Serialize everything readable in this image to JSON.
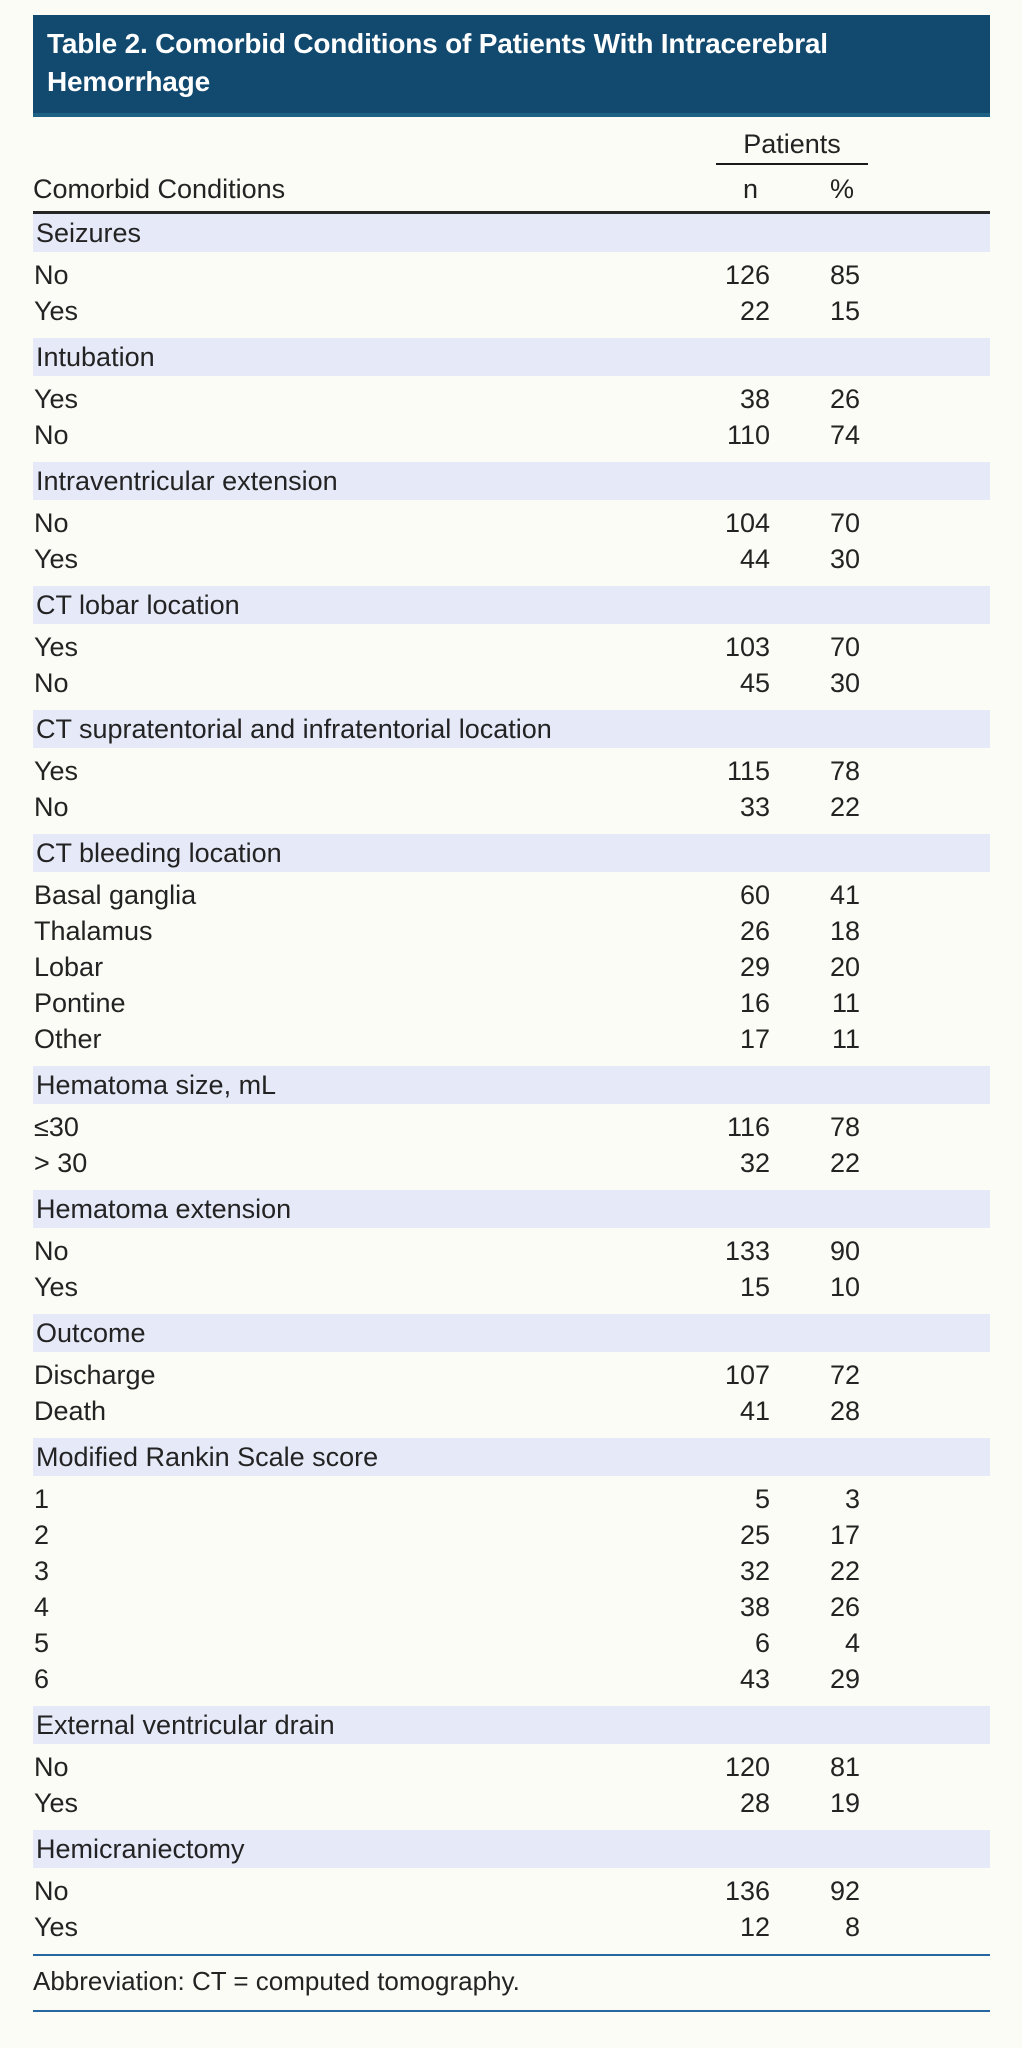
{
  "header": {
    "title": "Table 2. Comorbid Conditions of Patients With Intracerebral Hemorrhage"
  },
  "columns": {
    "condition": "Comorbid Conditions",
    "group": "Patients",
    "n": "n",
    "pct": "%"
  },
  "table": {
    "sections": [
      {
        "header": "Seizures",
        "rows": [
          {
            "label": "No",
            "n": "126",
            "pct": "85"
          },
          {
            "label": "Yes",
            "n": "22",
            "pct": "15"
          }
        ]
      },
      {
        "header": "Intubation",
        "rows": [
          {
            "label": "Yes",
            "n": "38",
            "pct": "26"
          },
          {
            "label": "No",
            "n": "110",
            "pct": "74"
          }
        ]
      },
      {
        "header": "Intraventricular extension",
        "rows": [
          {
            "label": "No",
            "n": "104",
            "pct": "70"
          },
          {
            "label": "Yes",
            "n": "44",
            "pct": "30"
          }
        ]
      },
      {
        "header": "CT lobar location",
        "rows": [
          {
            "label": "Yes",
            "n": "103",
            "pct": "70"
          },
          {
            "label": "No",
            "n": "45",
            "pct": "30"
          }
        ]
      },
      {
        "header": "CT supratentorial and infratentorial location",
        "rows": [
          {
            "label": "Yes",
            "n": "115",
            "pct": "78"
          },
          {
            "label": "No",
            "n": "33",
            "pct": "22"
          }
        ]
      },
      {
        "header": "CT bleeding location",
        "rows": [
          {
            "label": "Basal ganglia",
            "n": "60",
            "pct": "41"
          },
          {
            "label": "Thalamus",
            "n": "26",
            "pct": "18"
          },
          {
            "label": "Lobar",
            "n": "29",
            "pct": "20"
          },
          {
            "label": "Pontine",
            "n": "16",
            "pct": "11"
          },
          {
            "label": "Other",
            "n": "17",
            "pct": "11"
          }
        ]
      },
      {
        "header": "Hematoma size, mL",
        "rows": [
          {
            "label": "≤30",
            "n": "116",
            "pct": "78"
          },
          {
            "label": "> 30",
            "n": "32",
            "pct": "22"
          }
        ]
      },
      {
        "header": "Hematoma extension",
        "rows": [
          {
            "label": "No",
            "n": "133",
            "pct": "90"
          },
          {
            "label": "Yes",
            "n": "15",
            "pct": "10"
          }
        ]
      },
      {
        "header": "Outcome",
        "rows": [
          {
            "label": "Discharge",
            "n": "107",
            "pct": "72"
          },
          {
            "label": "Death",
            "n": "41",
            "pct": "28"
          }
        ]
      },
      {
        "header": "Modified Rankin Scale score",
        "rows": [
          {
            "label": "1",
            "n": "5",
            "pct": "3"
          },
          {
            "label": "2",
            "n": "25",
            "pct": "17"
          },
          {
            "label": "3",
            "n": "32",
            "pct": "22"
          },
          {
            "label": "4",
            "n": "38",
            "pct": "26"
          },
          {
            "label": "5",
            "n": "6",
            "pct": "4"
          },
          {
            "label": "6",
            "n": "43",
            "pct": "29"
          }
        ]
      },
      {
        "header": "External ventricular drain",
        "rows": [
          {
            "label": "No",
            "n": "120",
            "pct": "81"
          },
          {
            "label": "Yes",
            "n": "28",
            "pct": "19"
          }
        ]
      },
      {
        "header": "Hemicraniectomy",
        "rows": [
          {
            "label": "No",
            "n": "136",
            "pct": "92"
          },
          {
            "label": "Yes",
            "n": "12",
            "pct": "8"
          }
        ]
      }
    ]
  },
  "footer": {
    "note": "Abbreviation: CT = computed tomography."
  },
  "colors": {
    "navy": "#11496f",
    "navy-edge": "#1d6285",
    "band": "#e6eaf8",
    "page-bg": "#fbfcf5",
    "rule-blue": "#2766a0",
    "text": "#232323"
  }
}
